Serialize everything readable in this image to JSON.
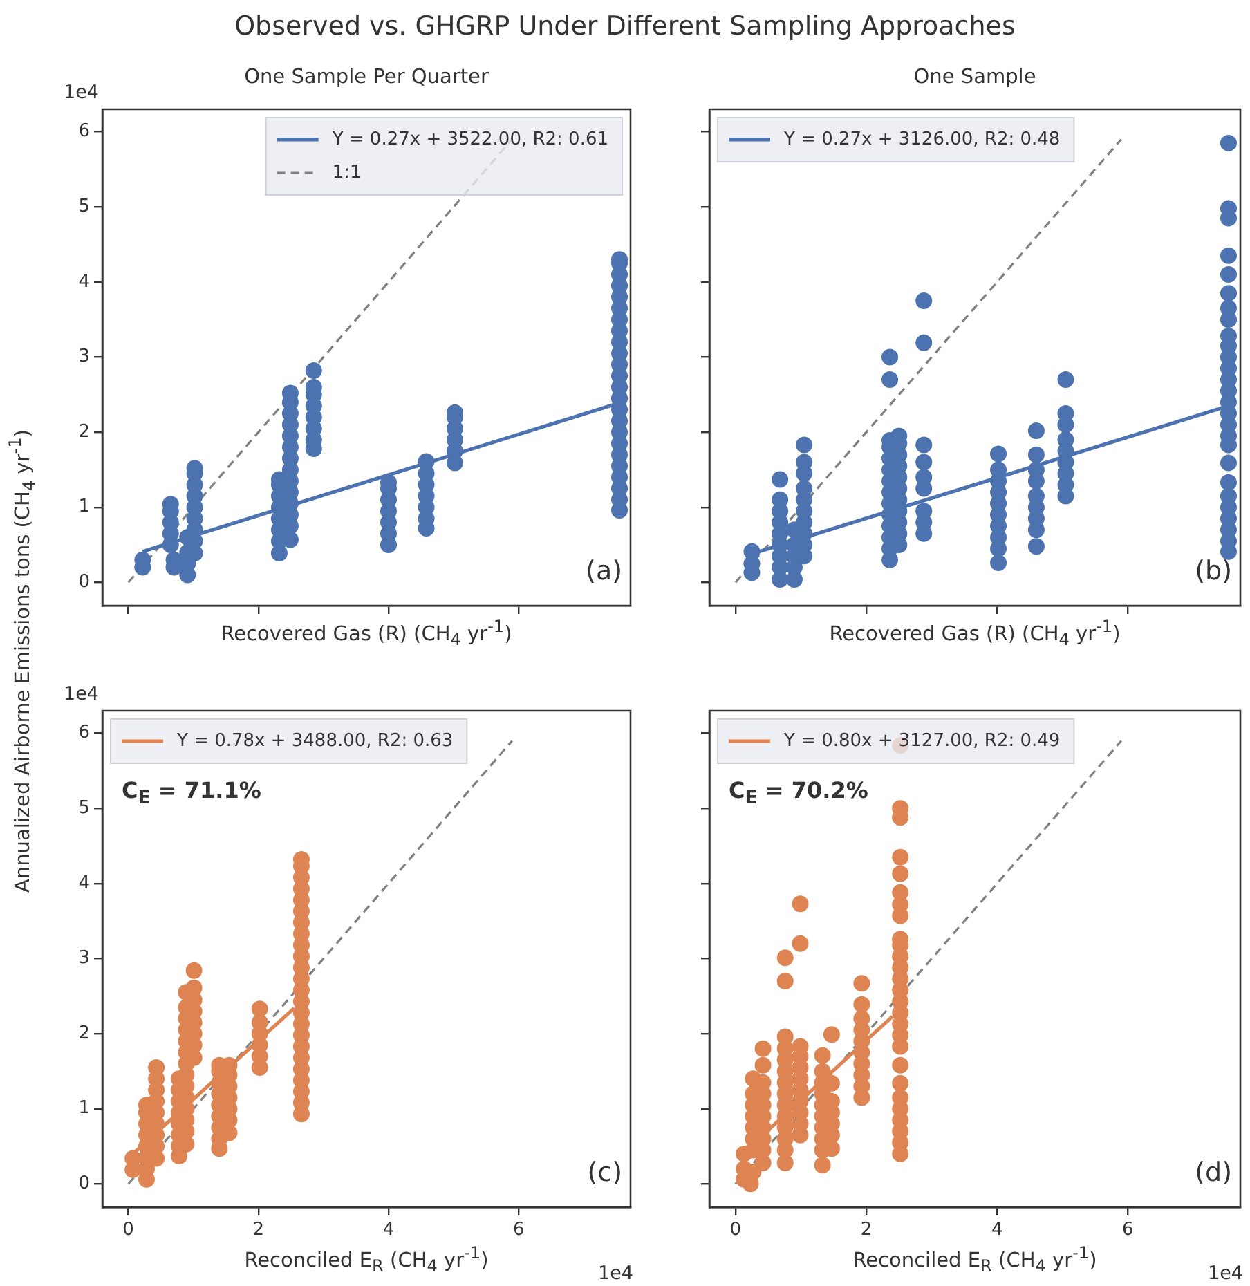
{
  "chart_data": [
    {
      "type": "scatter",
      "title": "Observed vs. GHGRP Under Different Sampling Approaches",
      "subtitle": "One Sample Per Quarter",
      "xlabel": "Recovered Gas (R) (CH$_{4}$ yr$^{-1}$)",
      "ylabel": "Annualized Airborne Emissions tons (CH$_{4}$ yr$^{-1}$)",
      "xlim": [
        -0.4,
        7.72
      ],
      "ylim": [
        -0.31,
        6.3
      ],
      "xticks": [
        0,
        2,
        4,
        6
      ],
      "yticks": [
        0,
        1,
        2,
        3,
        4,
        5,
        6
      ],
      "tick_labels": "y",
      "legend": "top right",
      "annotations": [
        "(a)",
        "1e4"
      ],
      "series": [
        {
          "color": "#4c72b0",
          "marker": "circle",
          "x": [
            0.22,
            0.22,
            0.65,
            0.65,
            0.65,
            0.65,
            0.65,
            0.7,
            0.7,
            0.91,
            0.91,
            0.91,
            0.91,
            1.02,
            1.02,
            1.02,
            1.02,
            1.02,
            1.02,
            1.02,
            1.02,
            1.02,
            2.32,
            2.32,
            2.32,
            2.32,
            2.32,
            2.32,
            2.32,
            2.32,
            2.49,
            2.49,
            2.49,
            2.49,
            2.49,
            2.49,
            2.49,
            2.49,
            2.49,
            2.49,
            2.49,
            2.49,
            2.49,
            2.49,
            2.85,
            2.85,
            2.85,
            2.85,
            2.85,
            2.85,
            2.85,
            2.85,
            4.0,
            4.0,
            4.0,
            4.0,
            4.0,
            4.0,
            4.0,
            4.58,
            4.58,
            4.58,
            4.58,
            4.58,
            4.58,
            4.58,
            5.02,
            5.02,
            5.02,
            5.02,
            5.02,
            5.02,
            7.55,
            7.55,
            7.55,
            7.55,
            7.55,
            7.55,
            7.55,
            7.55,
            7.55,
            7.55,
            7.55,
            7.55,
            7.55,
            7.55,
            7.55,
            7.55,
            7.55,
            7.55,
            7.55,
            7.55,
            7.55,
            7.55,
            7.55,
            7.55
          ],
          "values": [
            0.2,
            0.3,
            0.5,
            0.65,
            0.8,
            0.95,
            1.04,
            0.2,
            0.3,
            0.1,
            0.25,
            0.4,
            0.6,
            0.39,
            0.55,
            0.7,
            0.85,
            1.0,
            1.15,
            1.3,
            1.45,
            1.52,
            0.39,
            0.55,
            0.7,
            0.85,
            1.0,
            1.15,
            1.3,
            1.37,
            0.57,
            0.75,
            0.9,
            1.05,
            1.2,
            1.35,
            1.5,
            1.65,
            1.8,
            1.95,
            2.1,
            2.25,
            2.4,
            2.52,
            1.78,
            1.9,
            2.05,
            2.2,
            2.35,
            2.5,
            2.6,
            2.82,
            0.5,
            0.65,
            0.8,
            0.95,
            1.1,
            1.25,
            1.33,
            0.72,
            0.85,
            1.0,
            1.15,
            1.3,
            1.45,
            1.61,
            1.59,
            1.75,
            1.9,
            2.05,
            2.2,
            2.26,
            0.96,
            1.1,
            1.25,
            1.4,
            1.55,
            1.7,
            1.85,
            2.0,
            2.15,
            2.3,
            2.45,
            2.6,
            2.75,
            2.9,
            3.05,
            3.2,
            3.35,
            3.5,
            3.65,
            3.8,
            3.95,
            4.1,
            4.25,
            4.3
          ]
        },
        {
          "type": "line",
          "name": "Y = 0.27x + 3522.00, R2: 0.61",
          "color": "#4c72b0",
          "x": [
            0.22,
            7.55
          ],
          "values": [
            0.41,
            2.39
          ]
        },
        {
          "type": "line",
          "name": "1:1",
          "color": "#808080",
          "line_style": "dashed",
          "x": [
            0,
            5.9
          ],
          "values": [
            0,
            5.9
          ]
        }
      ]
    },
    {
      "type": "scatter",
      "title": "One Sample",
      "xlabel": "Recovered Gas (R) (CH$_{4}$ yr$^{-1}$)",
      "xlim": [
        -0.4,
        7.72
      ],
      "ylim": [
        -0.31,
        6.3
      ],
      "xticks": [
        0,
        2,
        4,
        6
      ],
      "yticks": [
        0,
        1,
        2,
        3,
        4,
        5,
        6
      ],
      "tick_labels": false,
      "legend": "top left",
      "annotations": [
        "(b)"
      ],
      "series": [
        {
          "color": "#4c72b0",
          "marker": "circle",
          "x": [
            0.25,
            0.25,
            0.25,
            0.68,
            0.68,
            0.68,
            0.68,
            0.68,
            0.68,
            0.68,
            0.68,
            0.68,
            0.9,
            0.9,
            0.9,
            0.9,
            0.9,
            1.05,
            1.05,
            1.05,
            1.05,
            1.05,
            1.05,
            1.05,
            1.05,
            1.05,
            1.05,
            2.36,
            2.36,
            2.36,
            2.36,
            2.36,
            2.36,
            2.36,
            2.36,
            2.36,
            2.36,
            2.36,
            2.36,
            2.36,
            2.36,
            2.5,
            2.5,
            2.5,
            2.5,
            2.5,
            2.5,
            2.5,
            2.5,
            2.5,
            2.5,
            2.5,
            2.88,
            2.88,
            2.88,
            2.88,
            2.88,
            2.88,
            2.88,
            2.88,
            2.88,
            4.02,
            4.02,
            4.02,
            4.02,
            4.02,
            4.02,
            4.02,
            4.02,
            4.02,
            4.02,
            4.6,
            4.6,
            4.6,
            4.6,
            4.6,
            4.6,
            4.6,
            4.6,
            4.6,
            5.05,
            5.05,
            5.05,
            5.05,
            5.05,
            5.05,
            5.05,
            5.05,
            5.05,
            7.54,
            7.54,
            7.54,
            7.54,
            7.54,
            7.54,
            7.54,
            7.54,
            7.54,
            7.54,
            7.54,
            7.54,
            7.54,
            7.54,
            7.54,
            7.54,
            7.54,
            7.54,
            7.54,
            7.54,
            7.54,
            7.54,
            7.54,
            7.54,
            7.54,
            7.54,
            7.54
          ],
          "values": [
            0.13,
            0.25,
            0.41,
            0.04,
            0.2,
            0.35,
            0.5,
            0.65,
            0.8,
            0.95,
            1.1,
            1.37,
            0.04,
            0.2,
            0.35,
            0.5,
            0.7,
            0.35,
            0.5,
            0.65,
            0.8,
            0.95,
            1.1,
            1.25,
            1.45,
            1.6,
            1.83,
            0.3,
            0.45,
            0.6,
            0.75,
            0.9,
            1.05,
            1.2,
            1.35,
            1.5,
            1.65,
            1.8,
            1.89,
            2.7,
            3.0,
            0.5,
            0.65,
            0.8,
            0.95,
            1.1,
            1.25,
            1.4,
            1.55,
            1.7,
            1.85,
            1.95,
            0.65,
            0.8,
            0.95,
            1.25,
            1.4,
            1.6,
            1.83,
            3.19,
            3.75,
            0.26,
            0.45,
            0.6,
            0.75,
            0.9,
            1.05,
            1.2,
            1.35,
            1.5,
            1.71,
            0.48,
            0.7,
            0.85,
            1.0,
            1.15,
            1.35,
            1.5,
            1.7,
            2.02,
            1.15,
            1.3,
            1.45,
            1.6,
            1.75,
            1.9,
            2.1,
            2.25,
            2.7,
            0.41,
            0.55,
            0.7,
            0.85,
            1.0,
            1.15,
            1.33,
            1.59,
            1.83,
            1.95,
            2.1,
            2.25,
            2.4,
            2.55,
            2.7,
            2.85,
            3.0,
            3.15,
            3.28,
            3.5,
            3.65,
            3.85,
            4.1,
            4.35,
            4.85,
            4.98,
            5.85
          ]
        },
        {
          "type": "line",
          "name": "Y = 0.27x + 3126.00, R2: 0.48",
          "color": "#4c72b0",
          "x": [
            0.25,
            7.54
          ],
          "values": [
            0.38,
            2.35
          ]
        },
        {
          "type": "line",
          "color": "#808080",
          "line_style": "dashed",
          "x": [
            0,
            5.9
          ],
          "values": [
            0,
            5.9
          ]
        }
      ]
    },
    {
      "type": "scatter",
      "xlabel": "Reconciled E$_{R}$ (CH$_{4}$ yr$^{-1}$)",
      "xlim": [
        -0.4,
        7.72
      ],
      "ylim": [
        -0.31,
        6.3
      ],
      "xticks": [
        0,
        2,
        4,
        6
      ],
      "yticks": [
        0,
        1,
        2,
        3,
        4,
        5,
        6
      ],
      "legend": "top left",
      "annotations": [
        "(c)",
        "C$_{E}$ = 71.1%",
        "1e4",
        "1e4"
      ],
      "series": [
        {
          "color": "#dd8452",
          "marker": "circle",
          "x": [
            0.07,
            0.07,
            0.28,
            0.28,
            0.28,
            0.28,
            0.28,
            0.28,
            0.28,
            0.28,
            0.43,
            0.43,
            0.43,
            0.43,
            0.43,
            0.43,
            0.43,
            0.43,
            0.43,
            0.78,
            0.78,
            0.78,
            0.78,
            0.78,
            0.78,
            0.78,
            0.78,
            0.89,
            0.89,
            0.89,
            0.89,
            0.89,
            0.89,
            0.89,
            0.89,
            0.89,
            0.89,
            0.89,
            0.89,
            0.89,
            0.89,
            1.01,
            1.01,
            1.01,
            1.01,
            1.01,
            1.01,
            1.01,
            1.01,
            1.4,
            1.4,
            1.4,
            1.4,
            1.4,
            1.4,
            1.4,
            1.4,
            1.4,
            1.55,
            1.55,
            1.55,
            1.55,
            1.55,
            1.55,
            1.55,
            2.02,
            2.02,
            2.02,
            2.02,
            2.02,
            2.02,
            2.66,
            2.66,
            2.66,
            2.66,
            2.66,
            2.66,
            2.66,
            2.66,
            2.66,
            2.66,
            2.66,
            2.66,
            2.66,
            2.66,
            2.66,
            2.66,
            2.66,
            2.66,
            2.66,
            2.66,
            2.66,
            2.66,
            2.66,
            2.66
          ],
          "values": [
            0.19,
            0.34,
            0.06,
            0.2,
            0.35,
            0.5,
            0.65,
            0.8,
            0.95,
            1.05,
            0.34,
            0.5,
            0.65,
            0.8,
            0.95,
            1.1,
            1.25,
            1.4,
            1.55,
            0.37,
            0.5,
            0.65,
            0.8,
            0.95,
            1.1,
            1.25,
            1.4,
            0.53,
            0.7,
            0.85,
            1.0,
            1.15,
            1.3,
            1.45,
            1.6,
            1.75,
            1.9,
            2.05,
            2.2,
            2.35,
            2.55,
            1.68,
            1.85,
            2.0,
            2.15,
            2.3,
            2.45,
            2.61,
            2.84,
            0.47,
            0.6,
            0.75,
            0.9,
            1.05,
            1.2,
            1.35,
            1.5,
            1.58,
            0.68,
            0.85,
            1.0,
            1.15,
            1.3,
            1.45,
            1.58,
            1.55,
            1.7,
            1.85,
            2.0,
            2.15,
            2.33,
            0.93,
            1.08,
            1.23,
            1.38,
            1.53,
            1.68,
            1.83,
            1.98,
            2.13,
            2.28,
            2.43,
            2.58,
            2.73,
            2.88,
            3.03,
            3.18,
            3.33,
            3.48,
            3.63,
            3.78,
            3.93,
            4.08,
            4.23,
            4.32
          ]
        },
        {
          "type": "line",
          "name": "Y = 0.78x + 3488.00, R2: 0.63",
          "color": "#dd8452",
          "x": [
            0.07,
            2.55
          ],
          "values": [
            0.4,
            2.34
          ]
        },
        {
          "type": "line",
          "color": "#808080",
          "line_style": "dashed",
          "x": [
            0,
            5.9
          ],
          "values": [
            0,
            5.9
          ]
        }
      ]
    },
    {
      "type": "scatter",
      "xlabel": "Reconciled E$_{R}$ (CH$_{4}$ yr$^{-1}$)",
      "xlim": [
        -0.4,
        7.72
      ],
      "ylim": [
        -0.31,
        6.3
      ],
      "xticks": [
        0,
        2,
        4,
        6
      ],
      "yticks": [
        0,
        1,
        2,
        3,
        4,
        5,
        6
      ],
      "tick_labels": "x",
      "legend": "top left",
      "annotations": [
        "(d)",
        "C$_{E}$ = 70.2%",
        "1e4"
      ],
      "series": [
        {
          "color": "#dd8452",
          "marker": "circle",
          "x": [
            0.13,
            0.13,
            0.13,
            0.23,
            0.27,
            0.27,
            0.27,
            0.27,
            0.27,
            0.27,
            0.27,
            0.27,
            0.42,
            0.42,
            0.42,
            0.42,
            0.42,
            0.42,
            0.42,
            0.42,
            0.42,
            0.42,
            0.76,
            0.76,
            0.76,
            0.76,
            0.76,
            0.76,
            0.76,
            0.76,
            0.76,
            0.76,
            0.76,
            0.76,
            0.76,
            0.76,
            0.99,
            0.99,
            0.99,
            0.99,
            0.99,
            0.99,
            0.99,
            0.99,
            0.99,
            0.99,
            0.99,
            1.33,
            1.33,
            1.33,
            1.33,
            1.33,
            1.33,
            1.33,
            1.33,
            1.33,
            1.33,
            1.47,
            1.47,
            1.47,
            1.47,
            1.47,
            1.47,
            1.47,
            1.93,
            1.93,
            1.93,
            1.93,
            1.93,
            1.93,
            1.93,
            1.93,
            1.93,
            1.93,
            2.52,
            2.52,
            2.52,
            2.52,
            2.52,
            2.52,
            2.52,
            2.52,
            2.52,
            2.52,
            2.52,
            2.52,
            2.52,
            2.52,
            2.52,
            2.52,
            2.52,
            2.52,
            2.52,
            2.52,
            2.52,
            2.52,
            2.52,
            2.52,
            2.52,
            2.52,
            2.52
          ],
          "values": [
            0.06,
            0.2,
            0.4,
            0,
            0.16,
            0.45,
            0.6,
            0.75,
            0.9,
            1.05,
            1.2,
            1.4,
            0.28,
            0.45,
            0.6,
            0.75,
            0.9,
            1.05,
            1.2,
            1.35,
            1.58,
            1.8,
            0.28,
            0.45,
            0.6,
            0.75,
            0.9,
            1.05,
            1.2,
            1.35,
            1.5,
            1.65,
            1.8,
            1.96,
            2.7,
            3.01,
            0.65,
            0.8,
            0.95,
            1.1,
            1.25,
            1.4,
            1.55,
            1.7,
            1.83,
            3.2,
            3.73,
            0.25,
            0.45,
            0.6,
            0.75,
            0.9,
            1.05,
            1.2,
            1.35,
            1.5,
            1.71,
            0.47,
            0.65,
            0.8,
            0.95,
            1.1,
            1.34,
            1.99,
            1.15,
            1.3,
            1.45,
            1.6,
            1.75,
            1.9,
            2.05,
            2.2,
            2.39,
            2.67,
            0.4,
            0.55,
            0.7,
            0.85,
            1.0,
            1.15,
            1.34,
            1.58,
            1.83,
            1.98,
            2.13,
            2.28,
            2.43,
            2.58,
            2.73,
            2.88,
            3.03,
            3.18,
            3.26,
            3.57,
            3.72,
            3.88,
            4.13,
            4.35,
            4.88,
            5.0,
            5.84
          ]
        },
        {
          "type": "line",
          "name": "Y = 0.80x + 3127.00, R2: 0.49",
          "color": "#dd8452",
          "x": [
            0.13,
            2.4
          ],
          "values": [
            0.42,
            2.23
          ]
        },
        {
          "type": "line",
          "color": "#808080",
          "line_style": "dashed",
          "x": [
            0,
            5.9
          ],
          "values": [
            0,
            5.9
          ]
        }
      ]
    }
  ]
}
